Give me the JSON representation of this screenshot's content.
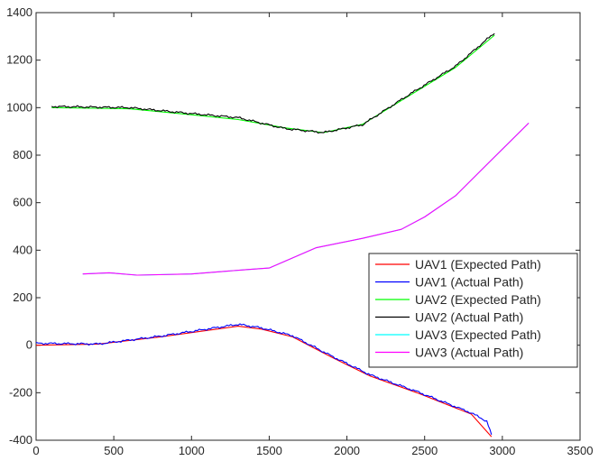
{
  "chart_data": {
    "type": "line",
    "title": "",
    "xlabel": "",
    "ylabel": "",
    "xlim": [
      0,
      3500
    ],
    "ylim": [
      -400,
      1400
    ],
    "grid": false,
    "legend": {
      "placement": "right-middle"
    },
    "x_ticks": [
      0,
      500,
      1000,
      1500,
      2000,
      2500,
      3000,
      3500
    ],
    "y_ticks": [
      -400,
      -200,
      0,
      200,
      400,
      600,
      800,
      1000,
      1200,
      1400
    ],
    "series": [
      {
        "name": "UAV1 (Expected Path)",
        "color": "#ff0000",
        "x": [
          0,
          400,
          800,
          1300,
          1450,
          1650,
          1900,
          2150,
          2450,
          2800,
          2930
        ],
        "y": [
          0,
          5,
          35,
          80,
          68,
          35,
          -50,
          -130,
          -200,
          -290,
          -385
        ]
      },
      {
        "name": "UAV1 (Actual Path)",
        "color": "#0000ff",
        "noise": 5,
        "x": [
          0,
          400,
          800,
          1300,
          1450,
          1650,
          1900,
          2150,
          2450,
          2800,
          2900,
          2930
        ],
        "y": [
          8,
          5,
          38,
          88,
          73,
          40,
          -45,
          -125,
          -195,
          -285,
          -320,
          -378
        ]
      },
      {
        "name": "UAV2 (Expected  Path)",
        "color": "#00ff00",
        "x": [
          100,
          600,
          1000,
          1300,
          1600,
          1850,
          2100,
          2400,
          2700,
          2950
        ],
        "y": [
          1000,
          995,
          970,
          950,
          915,
          895,
          930,
          1050,
          1170,
          1305
        ]
      },
      {
        "name": "UAV2 (Actual Path)",
        "color": "#000000",
        "noise": 5,
        "x": [
          100,
          600,
          1000,
          1300,
          1600,
          1850,
          2100,
          2400,
          2700,
          2950
        ],
        "y": [
          1005,
          1000,
          975,
          958,
          912,
          895,
          928,
          1055,
          1175,
          1315
        ]
      },
      {
        "name": "UAV3 (Expected  Path)",
        "color": "#00ffff",
        "x": [
          300,
          470,
          650,
          1000,
          1350,
          1500,
          1800,
          2100,
          2350,
          2500,
          2700,
          2900,
          3170
        ],
        "y": [
          300,
          305,
          295,
          300,
          318,
          325,
          410,
          450,
          488,
          540,
          630,
          760,
          935
        ]
      },
      {
        "name": "UAV3 (Actual Path)",
        "color": "#ff00ff",
        "x": [
          300,
          470,
          650,
          1000,
          1350,
          1500,
          1800,
          2100,
          2350,
          2500,
          2700,
          2900,
          3170
        ],
        "y": [
          300,
          305,
          295,
          300,
          318,
          325,
          410,
          450,
          488,
          540,
          630,
          760,
          935
        ]
      }
    ]
  }
}
